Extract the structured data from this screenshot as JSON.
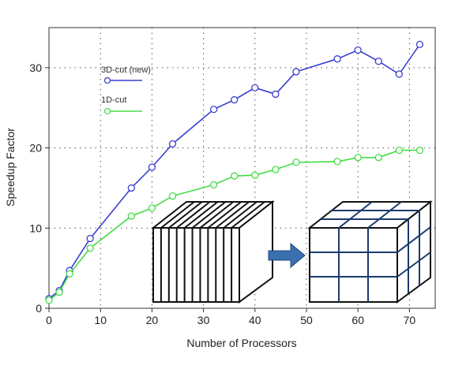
{
  "chart_data": {
    "type": "line",
    "xlabel": "Number of Processors",
    "ylabel": "Speedup Factor",
    "xlim": [
      0,
      75
    ],
    "ylim": [
      0,
      35
    ],
    "xticks": [
      0,
      10,
      20,
      30,
      40,
      50,
      60,
      70
    ],
    "yticks": [
      0,
      10,
      20,
      30
    ],
    "grid": true,
    "legend_position": "top-left",
    "series": [
      {
        "name": "3D-cut (new)",
        "color": "#3b3fcf",
        "x": [
          0,
          2,
          4,
          8,
          16,
          20,
          24,
          32,
          36,
          40,
          44,
          48,
          56,
          60,
          64,
          68,
          72
        ],
        "y": [
          1.2,
          2.2,
          4.7,
          8.7,
          15.0,
          17.6,
          20.5,
          24.8,
          26.0,
          27.5,
          26.7,
          29.5,
          31.1,
          32.2,
          30.8,
          29.2,
          32.9
        ]
      },
      {
        "name": "1D-cut",
        "color": "#44dd44",
        "x": [
          0,
          2,
          4,
          8,
          16,
          20,
          24,
          32,
          36,
          40,
          44,
          48,
          56,
          60,
          64,
          68,
          72
        ],
        "y": [
          1.0,
          2.0,
          4.3,
          7.5,
          11.5,
          12.5,
          14.0,
          15.4,
          16.5,
          16.6,
          17.3,
          18.2,
          18.3,
          18.8,
          18.8,
          19.7,
          19.7
        ]
      }
    ],
    "inset_illustration": {
      "description_icon": "block-decomposition-icon",
      "arrow_color": "#3a6fb0"
    }
  }
}
